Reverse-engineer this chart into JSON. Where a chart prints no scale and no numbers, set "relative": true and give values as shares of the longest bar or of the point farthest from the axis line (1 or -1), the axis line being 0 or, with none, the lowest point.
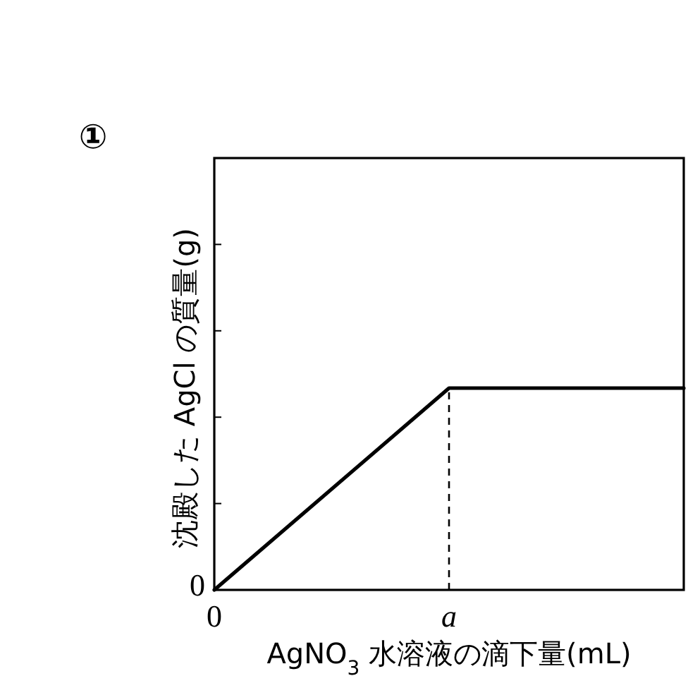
{
  "chart_data": {
    "type": "line",
    "xlabel": "AgNO$_{3}$ 水溶液の滴下量(mL)",
    "ylabel": "沈殿した AgCl の質量(g)",
    "relative": true,
    "color": "#000000",
    "categories": [
      "0",
      "a",
      null
    ],
    "values": [
      0,
      1,
      1
    ],
    "ref_lines": [
      {
        "axis": "x",
        "value": "a",
        "line_style": "dashed"
      }
    ],
    "annotations": [
      "①",
      "0"
    ]
  }
}
